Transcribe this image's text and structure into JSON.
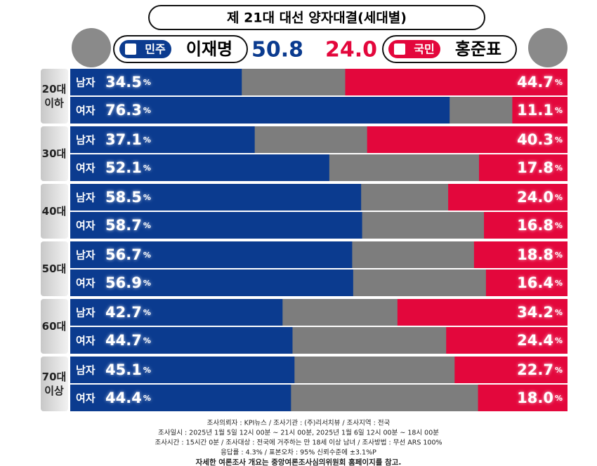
{
  "chart_data": {
    "type": "bar",
    "title": "제 21대 대선 양자대결(세대별)",
    "unit": "%",
    "xlim": [
      0,
      100
    ],
    "groups": [
      {
        "label": [
          "20대",
          "이하"
        ],
        "categories": [
          "남자",
          "여자"
        ]
      },
      {
        "label": [
          "30대"
        ],
        "categories": [
          "남자",
          "여자"
        ]
      },
      {
        "label": [
          "40대"
        ],
        "categories": [
          "남자",
          "여자"
        ]
      },
      {
        "label": [
          "50대"
        ],
        "categories": [
          "남자",
          "여자"
        ]
      },
      {
        "label": [
          "60대"
        ],
        "categories": [
          "남자",
          "여자"
        ]
      },
      {
        "label": [
          "70대",
          "이상"
        ],
        "categories": [
          "남자",
          "여자"
        ]
      }
    ],
    "series": [
      {
        "name": "이재명",
        "party": "민주",
        "color": "#0b3b8f",
        "total": 50.8,
        "total_label": "50.8",
        "values": [
          34.5,
          76.3,
          37.1,
          52.1,
          58.5,
          58.7,
          56.7,
          56.9,
          42.7,
          44.7,
          45.1,
          44.4
        ],
        "value_labels": [
          "34.5",
          "76.3",
          "37.1",
          "52.1",
          "58.5",
          "58.7",
          "56.7",
          "56.9",
          "42.7",
          "44.7",
          "45.1",
          "44.4"
        ]
      },
      {
        "name": "홍준표",
        "party": "국민",
        "color": "#e3073c",
        "total": 24.0,
        "total_label": "24.0",
        "values": [
          44.7,
          11.1,
          40.3,
          17.8,
          24.0,
          16.8,
          18.8,
          16.4,
          34.2,
          24.4,
          22.7,
          18.0
        ],
        "value_labels": [
          "44.7",
          "11.1",
          "40.3",
          "17.8",
          "24.0",
          "16.8",
          "18.8",
          "16.4",
          "34.2",
          "24.4",
          "22.7",
          "18.0"
        ]
      }
    ]
  },
  "footer": [
    "조사의뢰자 : KPI뉴스 / 조사기관 : (주)리서치뷰 / 조사지역 : 전국",
    "조사일시 : 2025년 1월 5일 12시 00분 ~ 21시 00분, 2025년 1월 6일 12시 00분 ~ 18시 00분",
    "조사시간 : 15시간 0분 / 조사대상 : 전국에 거주하는 만 18세 이상 남녀 / 조사방법 : 무선 ARS 100%",
    "응답률 : 4.3% / 표본오차 : 95% 신뢰수준에 ±3.1%P",
    "자세한 여론조사 개요는 중앙여론조사심의위원회 홈페이지를 참고."
  ]
}
